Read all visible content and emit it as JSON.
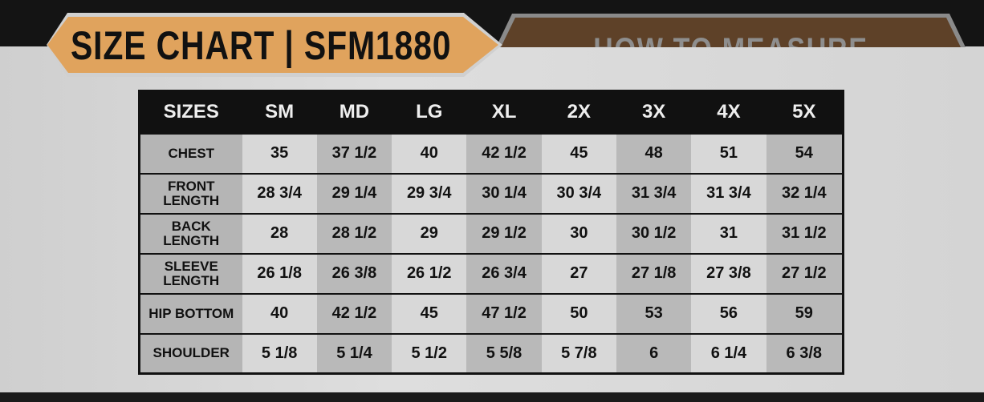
{
  "title": "SIZE CHART | SFM1880",
  "tab2": "HOW TO MEASURE",
  "headers": [
    "SIZES",
    "SM",
    "MD",
    "LG",
    "XL",
    "2X",
    "3X",
    "4X",
    "5X"
  ],
  "rows": [
    {
      "label": "CHEST",
      "values": [
        "35",
        "37 1/2",
        "40",
        "42 1/2",
        "45",
        "48",
        "51",
        "54"
      ]
    },
    {
      "label": "FRONT LENGTH",
      "values": [
        "28 3/4",
        "29 1/4",
        "29 3/4",
        "30 1/4",
        "30 3/4",
        "31 3/4",
        "31 3/4",
        "32 1/4"
      ]
    },
    {
      "label": "BACK LENGTH",
      "values": [
        "28",
        "28 1/2",
        "29",
        "29 1/2",
        "30",
        "30 1/2",
        "31",
        "31 1/2"
      ]
    },
    {
      "label": "SLEEVE LENGTH",
      "values": [
        "26 1/8",
        "26 3/8",
        "26 1/2",
        "26 3/4",
        "27",
        "27 1/8",
        "27 3/8",
        "27 1/2"
      ]
    },
    {
      "label": "HIP BOTTOM",
      "values": [
        "40",
        "42 1/2",
        "45",
        "47 1/2",
        "50",
        "53",
        "56",
        "59"
      ]
    },
    {
      "label": "SHOULDER",
      "values": [
        "5 1/8",
        "5 1/4",
        "5 1/2",
        "5 5/8",
        "5 7/8",
        "6",
        "6 1/4",
        "6 3/8"
      ]
    }
  ]
}
